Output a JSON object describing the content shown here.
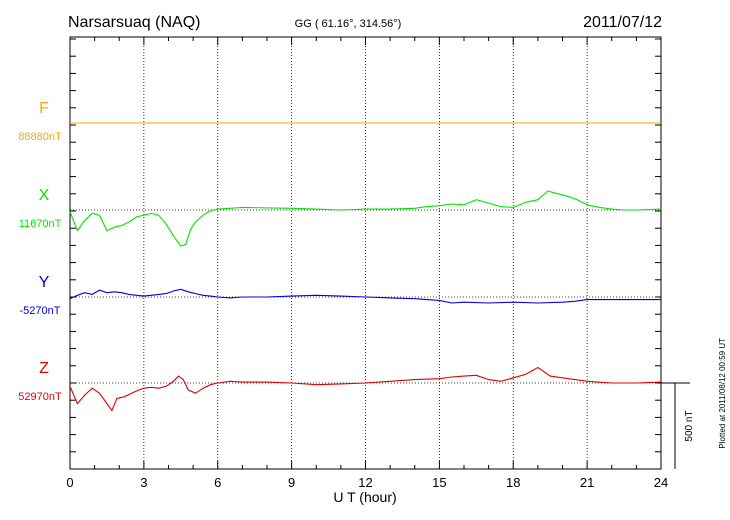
{
  "chart_data": {
    "type": "line",
    "title": "Narsarsuaq (NAQ)",
    "subtitle": "GG ( 61.16°, 314.56°)",
    "date": "2011/07/12",
    "xlabel": "U T (hour)",
    "xlim": [
      0,
      24
    ],
    "xticks": [
      "0",
      "3",
      "6",
      "9",
      "12",
      "15",
      "18",
      "21",
      "24"
    ],
    "grid": true,
    "scale_bar_label": "500 nT",
    "scale_bar_nT": 500,
    "plotted_note": "Plotted at 2011/08/12 00:59 UT",
    "series": [
      {
        "name": "F",
        "baseline_label": "88880nT",
        "color": "#ffa500",
        "x": [
          0,
          3,
          6,
          9,
          12,
          15,
          18,
          21,
          24
        ],
        "offset_nT": [
          0,
          0,
          0,
          0,
          0,
          0,
          0,
          0,
          0
        ]
      },
      {
        "name": "X",
        "baseline_label": "11670nT",
        "color": "#00e600",
        "x": [
          0,
          0.3,
          0.6,
          0.9,
          1.2,
          1.5,
          1.8,
          2.1,
          2.4,
          2.7,
          3.0,
          3.3,
          3.6,
          3.9,
          4.2,
          4.5,
          4.7,
          4.9,
          5.1,
          5.4,
          5.7,
          6.0,
          6.5,
          7.0,
          8.0,
          9.0,
          10.0,
          11.0,
          12.0,
          13.0,
          14.0,
          14.5,
          15.0,
          15.5,
          16.0,
          16.5,
          17.0,
          17.5,
          18.0,
          18.5,
          19.0,
          19.4,
          19.8,
          20.2,
          20.6,
          21.0,
          21.5,
          22.0,
          22.5,
          23.0,
          24.0
        ],
        "offset_nT": [
          -10,
          -120,
          -60,
          -20,
          -30,
          -120,
          -100,
          -90,
          -70,
          -40,
          -30,
          -20,
          -30,
          -80,
          -150,
          -210,
          -200,
          -110,
          -70,
          -30,
          -5,
          5,
          10,
          15,
          12,
          10,
          5,
          0,
          5,
          5,
          10,
          20,
          25,
          35,
          30,
          60,
          40,
          20,
          15,
          45,
          60,
          110,
          95,
          80,
          60,
          30,
          15,
          5,
          0,
          0,
          5
        ]
      },
      {
        "name": "Y",
        "baseline_label": "-5270nT",
        "color": "#0000e0",
        "x": [
          0,
          0.3,
          0.6,
          0.9,
          1.2,
          1.5,
          1.8,
          2.1,
          2.4,
          2.7,
          3.0,
          3.3,
          3.6,
          3.9,
          4.2,
          4.5,
          4.8,
          5.1,
          5.4,
          5.7,
          6.0,
          6.5,
          7.0,
          8.0,
          9.0,
          10.0,
          11.0,
          12.0,
          13.0,
          14.0,
          15.0,
          15.5,
          16.0,
          17.0,
          18.0,
          19.0,
          20.0,
          20.5,
          21.0,
          22.0,
          23.0,
          24.0
        ],
        "offset_nT": [
          -10,
          10,
          25,
          15,
          40,
          25,
          30,
          25,
          15,
          10,
          5,
          10,
          15,
          20,
          35,
          45,
          30,
          20,
          10,
          5,
          0,
          -5,
          0,
          0,
          5,
          10,
          5,
          0,
          -5,
          -10,
          -20,
          -35,
          -30,
          -35,
          -30,
          -35,
          -30,
          -25,
          -15,
          -15,
          -15,
          -15
        ]
      },
      {
        "name": "Z",
        "baseline_label": "52970nT",
        "color": "#e00000",
        "x": [
          0,
          0.3,
          0.6,
          0.9,
          1.2,
          1.5,
          1.7,
          1.9,
          2.2,
          2.5,
          2.8,
          3.0,
          3.3,
          3.6,
          3.9,
          4.2,
          4.4,
          4.6,
          4.8,
          5.1,
          5.4,
          5.7,
          6.0,
          6.5,
          7.0,
          8.0,
          9.0,
          10.0,
          11.0,
          12.0,
          13.0,
          14.0,
          15.0,
          15.5,
          16.0,
          16.5,
          17.0,
          17.5,
          18.0,
          18.5,
          19.0,
          19.5,
          20.0,
          20.5,
          21.0,
          22.0,
          23.0,
          24.0
        ],
        "offset_nT": [
          -20,
          -120,
          -70,
          -30,
          -60,
          -120,
          -160,
          -90,
          -80,
          -60,
          -40,
          -30,
          -25,
          -30,
          -20,
          10,
          40,
          20,
          -40,
          -60,
          -30,
          -10,
          0,
          10,
          5,
          5,
          0,
          -10,
          -5,
          0,
          10,
          20,
          25,
          35,
          40,
          45,
          20,
          10,
          30,
          50,
          90,
          40,
          30,
          20,
          10,
          0,
          0,
          5
        ]
      }
    ]
  }
}
